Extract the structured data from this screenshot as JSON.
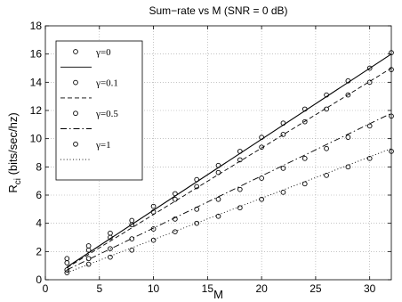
{
  "chart_data": {
    "type": "line",
    "title": "Sum−rate vs M (SNR = 0 dB)",
    "xlabel": "M",
    "ylabel_main": "R",
    "ylabel_sub": "ci",
    "ylabel_units": " (bits/sec/hz)",
    "xlim": [
      0,
      32
    ],
    "ylim": [
      0,
      18
    ],
    "xticks": [
      0,
      5,
      10,
      15,
      20,
      25,
      30
    ],
    "yticks": [
      0,
      2,
      4,
      6,
      8,
      10,
      12,
      14,
      16,
      18
    ],
    "grid": true,
    "legend_position": "top-left",
    "series": [
      {
        "name": "γ=0",
        "line_style": "solid",
        "line": {
          "x": [
            2,
            32
          ],
          "y": [
            0.9,
            16.0
          ]
        },
        "markers": {
          "x": [
            2,
            4,
            6,
            8,
            10,
            12,
            14,
            16,
            18,
            20,
            22,
            24,
            26,
            28,
            30,
            32
          ],
          "y": [
            1.5,
            2.4,
            3.3,
            4.2,
            5.2,
            6.1,
            7.1,
            8.1,
            9.1,
            10.1,
            11.1,
            12.1,
            13.1,
            14.1,
            15.0,
            16.1
          ]
        }
      },
      {
        "name": "γ=0.1",
        "line_style": "dashed",
        "line": {
          "x": [
            2,
            32
          ],
          "y": [
            0.85,
            15.0
          ]
        },
        "markers": {
          "x": [
            2,
            4,
            6,
            8,
            10,
            12,
            14,
            16,
            18,
            20,
            22,
            24,
            26,
            28,
            30,
            32
          ],
          "y": [
            1.2,
            2.1,
            3.0,
            3.9,
            4.8,
            5.7,
            6.6,
            7.6,
            8.5,
            9.4,
            10.3,
            11.2,
            12.1,
            13.1,
            14.0,
            14.9
          ]
        }
      },
      {
        "name": "γ=0.5",
        "line_style": "dashdot",
        "line": {
          "x": [
            2,
            32
          ],
          "y": [
            0.7,
            11.8
          ]
        },
        "markers": {
          "x": [
            2,
            4,
            6,
            8,
            10,
            12,
            14,
            16,
            18,
            20,
            22,
            24,
            26,
            28,
            30,
            32
          ],
          "y": [
            0.7,
            1.5,
            2.2,
            2.9,
            3.6,
            4.3,
            5.0,
            5.7,
            6.4,
            7.2,
            7.9,
            8.6,
            9.3,
            10.1,
            10.9,
            11.6
          ]
        }
      },
      {
        "name": "γ=1",
        "line_style": "dotted",
        "line": {
          "x": [
            2,
            32
          ],
          "y": [
            0.5,
            9.3
          ]
        },
        "markers": {
          "x": [
            2,
            4,
            6,
            8,
            10,
            12,
            14,
            16,
            18,
            20,
            22,
            24,
            26,
            28,
            30,
            32
          ],
          "y": [
            0.5,
            1.1,
            1.6,
            2.1,
            2.8,
            3.4,
            4.0,
            4.5,
            5.1,
            5.7,
            6.2,
            6.8,
            7.4,
            8.0,
            8.6,
            9.1
          ]
        }
      }
    ]
  },
  "colors": {
    "line": "#000000",
    "grid": "#a0a0a0",
    "background": "#ffffff"
  }
}
